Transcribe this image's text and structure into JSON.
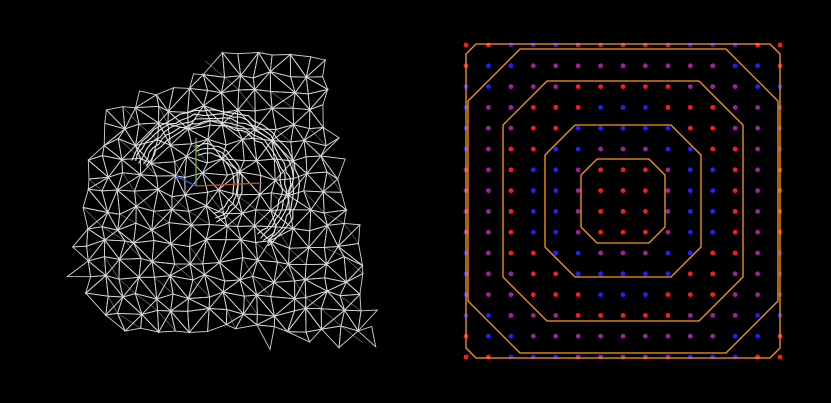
{
  "colors": {
    "background": "#000000",
    "wireframe": "#e8e8e8",
    "axis_x": "#c0502a",
    "axis_y": "#6fae4f",
    "axis_z": "#3a56d8",
    "contour": "#ff9a1a",
    "dot_red": "#ff1a1a",
    "dot_blue": "#2020ff",
    "dot_purple": "#a020a0"
  },
  "left_panel": {
    "kind": "triangulated-wireframe-mesh",
    "axes": [
      "x",
      "y",
      "z"
    ]
  },
  "right_panel": {
    "kind": "sample-grid-with-contours",
    "grid_columns": 15,
    "grid_rows": 16,
    "contour_levels": 5
  }
}
